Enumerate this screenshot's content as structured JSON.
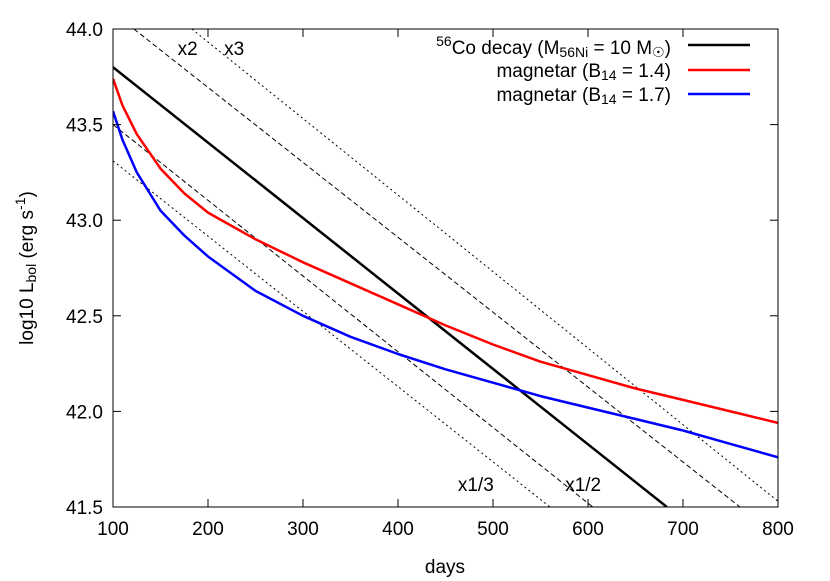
{
  "chart_data": {
    "type": "line",
    "xlabel": "days",
    "ylabel": {
      "pre": "log10 L",
      "sub": "bol",
      "post": " (erg s",
      "sup": "-1",
      "close": ")"
    },
    "xlim": [
      100,
      800
    ],
    "ylim": [
      41.5,
      44.0
    ],
    "xticks": [
      100,
      200,
      300,
      400,
      500,
      600,
      700,
      800
    ],
    "yticks": [
      "41.5",
      "42.0",
      "42.5",
      "43.0",
      "43.5",
      "44.0"
    ],
    "grid": false,
    "legend_position": "top-right",
    "series": [
      {
        "name": "56Co decay (M56Ni = 10 M☉)",
        "legend": {
          "sup": "56",
          "pre": "Co decay (M",
          "sub": "56Ni",
          "mid": " = 10 M",
          "sub2": "☉",
          "post": ")"
        },
        "color": "#000000",
        "x": [
          100,
          683
        ],
        "y": [
          43.8,
          41.5
        ]
      },
      {
        "name": "magnetar (B14 = 1.4)",
        "legend": {
          "pre": "magnetar (B",
          "sub": "14",
          "post": " = 1.4)"
        },
        "color": "#ff0000",
        "x": [
          100,
          110,
          125,
          150,
          175,
          200,
          250,
          300,
          350,
          400,
          450,
          500,
          550,
          600,
          650,
          700,
          750,
          800
        ],
        "y": [
          43.74,
          43.6,
          43.45,
          43.27,
          43.14,
          43.04,
          42.9,
          42.78,
          42.67,
          42.56,
          42.45,
          42.35,
          42.26,
          42.19,
          42.12,
          42.06,
          42.0,
          41.94
        ]
      },
      {
        "name": "magnetar (B14 = 1.7)",
        "legend": {
          "pre": "magnetar (B",
          "sub": "14",
          "post": " = 1.7)"
        },
        "color": "#0000ff",
        "x": [
          100,
          110,
          125,
          150,
          175,
          200,
          250,
          300,
          350,
          400,
          450,
          500,
          550,
          600,
          650,
          700,
          750,
          800
        ],
        "y": [
          43.57,
          43.42,
          43.25,
          43.05,
          42.92,
          42.81,
          42.63,
          42.5,
          42.39,
          42.3,
          42.22,
          42.15,
          42.08,
          42.02,
          41.96,
          41.9,
          41.83,
          41.76
        ]
      }
    ],
    "reference_lines": [
      {
        "label": "x2",
        "x": [
          122,
          760
        ],
        "y": [
          44.0,
          41.5
        ],
        "dash": "dash"
      },
      {
        "label": "x3",
        "x": [
          183,
          800
        ],
        "y": [
          44.0,
          41.53
        ],
        "dash": "dot"
      },
      {
        "label": "x1/2",
        "x": [
          100,
          605
        ],
        "y": [
          43.5,
          41.5
        ],
        "dash": "dash"
      },
      {
        "label": "x1/3",
        "x": [
          100,
          560
        ],
        "y": [
          43.31,
          41.5
        ],
        "dash": "dot"
      }
    ],
    "annotations": [
      {
        "text": "x2",
        "x": 168,
        "y": 43.9
      },
      {
        "text": "x3",
        "x": 217,
        "y": 43.9
      },
      {
        "text": "x1/3",
        "x": 463,
        "y": 41.62
      },
      {
        "text": "x1/2",
        "x": 576,
        "y": 41.62
      }
    ]
  }
}
